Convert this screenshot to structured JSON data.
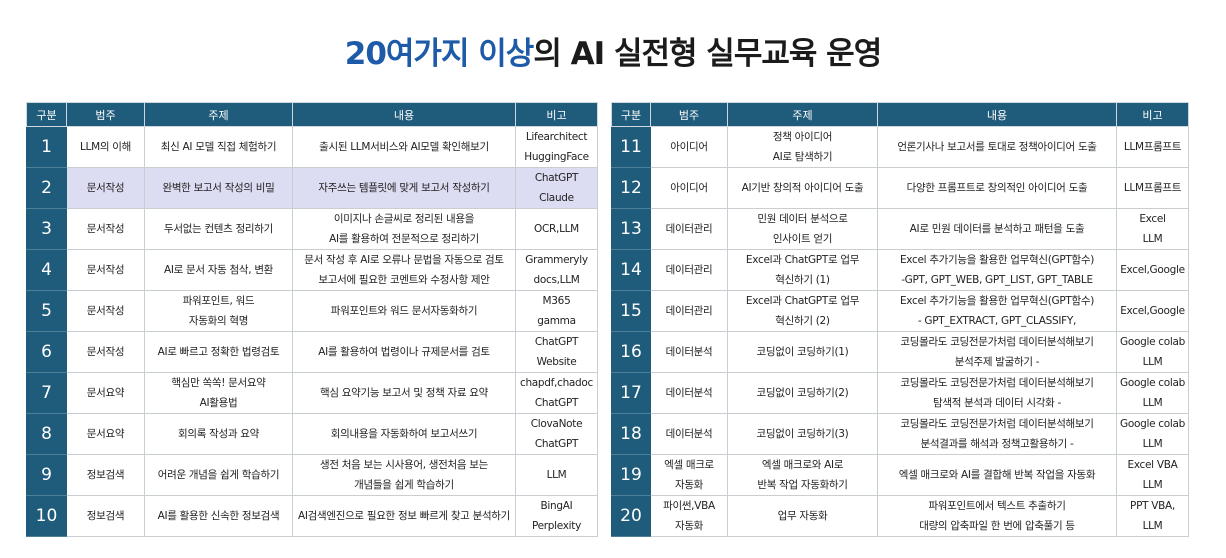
{
  "title": {
    "highlight": "20여가지 이상",
    "rest": "의 AI 실전형 실무교육 운영"
  },
  "headers": [
    "구분",
    "범주",
    "주제",
    "내용",
    "비고"
  ],
  "left_rows": [
    {
      "no": "1",
      "cat": "LLM의 이해",
      "topic": "최신 AI 모델 직접 체험하기",
      "content": "출시된 LLM서비스와 AI모델 확인해보기",
      "note": "Lifearchitect\nHuggingFace"
    },
    {
      "no": "2",
      "cat": "문서작성",
      "topic": "완벽한 보고서 작성의 비밀",
      "content": "자주쓰는 템플릿에 맞게 보고서 작성하기",
      "note": "ChatGPT\nClaude"
    },
    {
      "no": "3",
      "cat": "문서작성",
      "topic": "두서없는 컨텐츠 정리하기",
      "content": "이미지나 손글씨로 정리된 내용을\nAI를 활용하여 전문적으로 정리하기",
      "note": "OCR,LLM"
    },
    {
      "no": "4",
      "cat": "문서작성",
      "topic": "AI로 문서 자동 첨삭, 변환",
      "content": "문서 작성 후 AI로 오류나 문법을 자동으로 검토\n보고서에 필요한 코멘트와 수정사항 제안",
      "note": "Grammeryly\ndocs,LLM"
    },
    {
      "no": "5",
      "cat": "문서작성",
      "topic": "파워포인트, 워드\n자동화의 혁명",
      "content": "파워포인트와 워드 문서자동화하기",
      "note": "M365\ngamma"
    },
    {
      "no": "6",
      "cat": "문서작성",
      "topic": "AI로 빠르고 정확한 법령검토",
      "content": "AI를 활용하여 법령이나 규제문서를 검토",
      "note": "ChatGPT\nWebsite"
    },
    {
      "no": "7",
      "cat": "문서요약",
      "topic": "핵심만 쏙쏙! 문서요약\nAI활용법",
      "content": "핵심 요약기능 보고서 및 정책 자료 요약",
      "note": "chapdf,chadoc\nChatGPT"
    },
    {
      "no": "8",
      "cat": "문서요약",
      "topic": "회의록 작성과 요약",
      "content": "회의내용을 자동화하여 보고서쓰기",
      "note": "ClovaNote\nChatGPT"
    },
    {
      "no": "9",
      "cat": "정보검색",
      "topic": "어려운 개념을 쉽게 학습하기",
      "content": "생전 처음 보는 시사용어, 생전처음 보는\n개념들을 쉽게 학습하기",
      "note": "LLM"
    },
    {
      "no": "10",
      "cat": "정보검색",
      "topic": "AI를 활용한 신속한 정보검색",
      "content": "AI검색엔진으로 필요한 정보 빠르게 찾고 분석하기",
      "note": "BingAI\nPerplexity"
    }
  ],
  "right_rows": [
    {
      "no": "11",
      "cat": "아이디어",
      "topic": "정책 아이디어\nAI로 탐색하기",
      "content": "언론기사나 보고서를 토대로 정책아이디어 도출",
      "note": "LLM프롬프트"
    },
    {
      "no": "12",
      "cat": "아이디어",
      "topic": "AI기반 창의적 아이디어 도출",
      "content": "다양한 프롬프트로 창의적인 아이디어 도출",
      "note": "LLM프롬프트"
    },
    {
      "no": "13",
      "cat": "데이터관리",
      "topic": "민원 데이터 분석으로\n인사이트 얻기",
      "content": "AI로 민원 데이터를 분석하고 패턴을 도출",
      "note": "Excel\nLLM"
    },
    {
      "no": "14",
      "cat": "데이터관리",
      "topic": "Excel과 ChatGPT로 업무\n혁신하기 (1)",
      "content": "Excel 추가기능을 활용한 업무혁신(GPT함수)\n-GPT, GPT_WEB, GPT_LIST, GPT_TABLE",
      "note": "Excel,Google"
    },
    {
      "no": "15",
      "cat": "데이터관리",
      "topic": "Excel과 ChatGPT로 업무\n혁신하기 (2)",
      "content": "Excel 추가기능을 활용한 업무혁신(GPT함수)\n- GPT_EXTRACT, GPT_CLASSIFY,",
      "note": "Excel,Google"
    },
    {
      "no": "16",
      "cat": "데이터분석",
      "topic": "코딩없이 코딩하기(1)",
      "content": "코딩몰라도 코딩전문가처럼 데이터분석해보기\n분석주제 발굴하기 -",
      "note": "Google colab\nLLM"
    },
    {
      "no": "17",
      "cat": "데이터분석",
      "topic": "코딩없이 코딩하기(2)",
      "content": "코딩몰라도 코딩전문가처럼 데이터분석해보기\n탐색적 분석과 데이터 시각화 -",
      "note": "Google colab\nLLM"
    },
    {
      "no": "18",
      "cat": "데이터분석",
      "topic": "코딩없이 코딩하기(3)",
      "content": "코딩몰라도 코딩전문가처럼 데이터분석해보기\n분석결과를 해석과 정책고활용하기 -",
      "note": "Google colab\nLLM"
    },
    {
      "no": "19",
      "cat": "엑셀 매크로\n자동화",
      "topic": "엑셀 매크로와 AI로\n반복 작업 자동화하기",
      "content": "엑셀 매크로와 AI를 결합해 반복 작업을 자동화",
      "note": "Excel VBA\nLLM"
    },
    {
      "no": "20",
      "cat": "파이썬,VBA\n자동화",
      "topic": "업무 자동화",
      "content": "파워포인트에서 텍스트 추출하기\n대량의 압축파일 한 번에 압축풀기 등",
      "note": "PPT VBA,\nLLM"
    }
  ]
}
